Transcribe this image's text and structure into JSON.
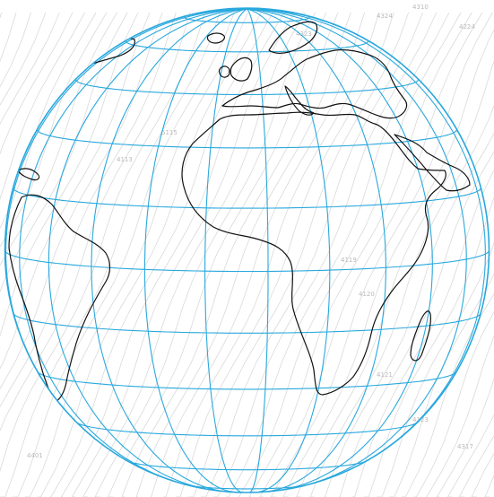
{
  "map": {
    "projection": "orthographic",
    "center": {
      "lon": 10,
      "lat": 5
    },
    "graticule": {
      "meridian_step_deg": 15,
      "parallel_step_deg": 15,
      "color": "#29a8dd"
    },
    "coastline_color": "#111111",
    "background": {
      "type": "faint contour lines",
      "label_color": "#b9b9b9",
      "labels": [
        "4310",
        "4324",
        "4224",
        "4323",
        "4113",
        "5115",
        "4119",
        "4120",
        "4121",
        "4123",
        "4317",
        "4401"
      ]
    }
  }
}
